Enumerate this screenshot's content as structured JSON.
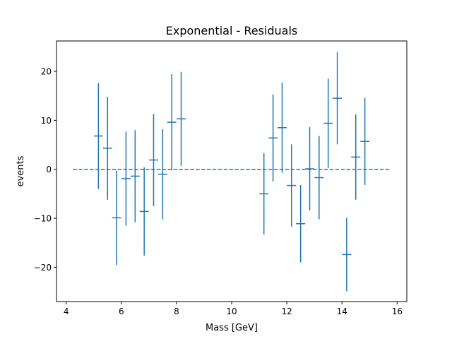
{
  "chart_data": {
    "type": "scatter",
    "title": "Exponential - Residuals",
    "xlabel": "Mass [GeV]",
    "ylabel": "events",
    "xlim": [
      3.65,
      16.35
    ],
    "ylim": [
      -27.0,
      26.2
    ],
    "xticks": [
      4,
      6,
      8,
      10,
      12,
      14,
      16
    ],
    "xtick_labels": [
      "4",
      "6",
      "8",
      "10",
      "12",
      "14",
      "16"
    ],
    "yticks": [
      -20,
      -10,
      0,
      10,
      20
    ],
    "ytick_labels": [
      "−20",
      "−10",
      "0",
      "10",
      "20"
    ],
    "grid": false,
    "color": "#1f77b4",
    "baseline": {
      "y": 0,
      "x_range": [
        4.25,
        15.75
      ],
      "style": "dashed"
    },
    "bin_half_width": 0.166,
    "series": [
      {
        "points": [
          {
            "x": 5.17,
            "y": 6.8,
            "err": 10.8
          },
          {
            "x": 5.5,
            "y": 4.3,
            "err": 10.5
          },
          {
            "x": 5.83,
            "y": -9.9,
            "err": 9.6
          },
          {
            "x": 6.17,
            "y": -1.9,
            "err": 9.6
          },
          {
            "x": 6.5,
            "y": -1.4,
            "err": 9.4
          },
          {
            "x": 6.83,
            "y": -8.6,
            "err": 9.0
          },
          {
            "x": 7.17,
            "y": 1.9,
            "err": 9.4
          },
          {
            "x": 7.5,
            "y": -1.0,
            "err": 9.2
          },
          {
            "x": 7.83,
            "y": 9.6,
            "err": 9.8
          },
          {
            "x": 8.17,
            "y": 10.3,
            "err": 9.6
          },
          {
            "x": 11.17,
            "y": -5.0,
            "err": 8.3
          },
          {
            "x": 11.5,
            "y": 6.4,
            "err": 8.9
          },
          {
            "x": 11.83,
            "y": 8.5,
            "err": 9.2
          },
          {
            "x": 12.17,
            "y": -3.3,
            "err": 8.4
          },
          {
            "x": 12.5,
            "y": -11.1,
            "err": 7.9
          },
          {
            "x": 12.83,
            "y": 0.1,
            "err": 8.5
          },
          {
            "x": 13.17,
            "y": -1.7,
            "err": 8.5
          },
          {
            "x": 13.5,
            "y": 9.4,
            "err": 9.1
          },
          {
            "x": 13.83,
            "y": 14.5,
            "err": 9.4
          },
          {
            "x": 14.17,
            "y": -17.4,
            "err": 7.5
          },
          {
            "x": 14.5,
            "y": 2.5,
            "err": 8.7
          },
          {
            "x": 14.83,
            "y": 5.7,
            "err": 8.9
          }
        ]
      }
    ]
  }
}
